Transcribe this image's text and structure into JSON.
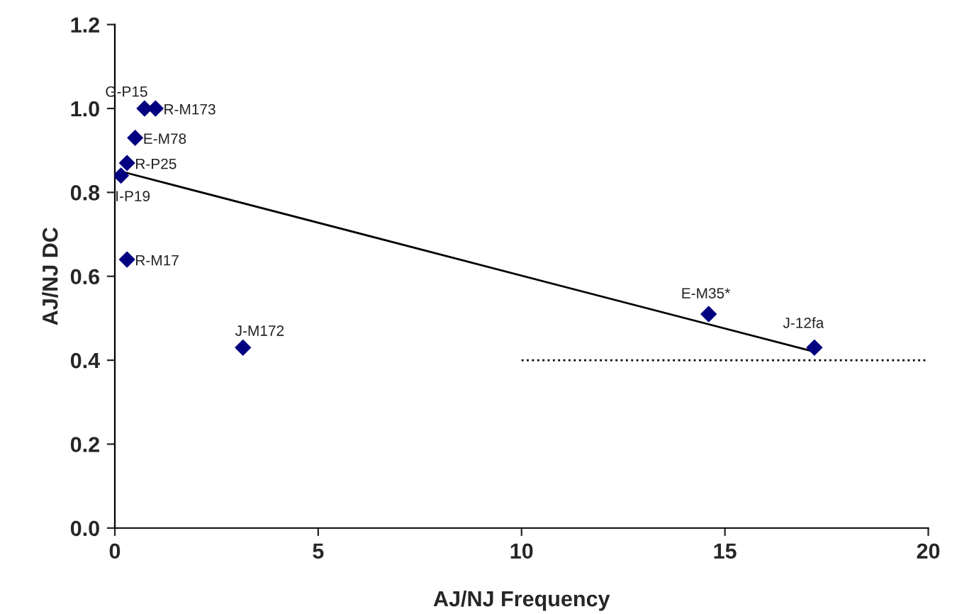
{
  "chart_data": {
    "type": "scatter",
    "xlabel": "AJ/NJ Frequency",
    "ylabel": "AJ/NJ DC",
    "xlim": [
      0,
      20
    ],
    "xticks": [
      0,
      5,
      10,
      15,
      20
    ],
    "ylim": [
      0,
      1.2
    ],
    "yticks": [
      {
        "value": 0,
        "label": "0.0"
      },
      {
        "value": 0.2,
        "label": "0.2"
      },
      {
        "value": 0.4,
        "label": "0.4"
      },
      {
        "value": 0.6,
        "label": "0.6"
      },
      {
        "value": 0.8,
        "label": "0.8"
      },
      {
        "value": 1.0,
        "label": "1.0"
      },
      {
        "value": 1.2,
        "label": "1.2"
      }
    ],
    "grid": false,
    "legend": false,
    "series": [
      {
        "color": "#000080",
        "marker": "diamond",
        "x": [
          0.73,
          1.0,
          0.5,
          0.3,
          0.15,
          0.3,
          3.15,
          14.6,
          17.2
        ],
        "values": [
          1.0,
          1.0,
          0.93,
          0.87,
          0.84,
          0.64,
          0.43,
          0.51,
          0.43
        ]
      },
      {
        "type": "line",
        "color": "#000000",
        "line_style": "solid",
        "x": [
          0.15,
          17.2
        ],
        "values": [
          0.85,
          0.42
        ]
      },
      {
        "type": "line",
        "color": "#000000",
        "line_style": "dotted",
        "x": [
          10,
          20
        ],
        "values": [
          0.4,
          0.4
        ]
      }
    ],
    "annotations": [
      {
        "text": "G-P15",
        "x": 0.73,
        "y": 1.0
      },
      {
        "text": "R-M173",
        "x": 1.0,
        "y": 1.0
      },
      {
        "text": "E-M78",
        "x": 0.5,
        "y": 0.93
      },
      {
        "text": "R-P25",
        "x": 0.3,
        "y": 0.87
      },
      {
        "text": "I-P19",
        "x": 0.15,
        "y": 0.84
      },
      {
        "text": "R-M17",
        "x": 0.3,
        "y": 0.64
      },
      {
        "text": "J-M172",
        "x": 3.15,
        "y": 0.43
      },
      {
        "text": "E-M35*",
        "x": 14.6,
        "y": 0.51
      },
      {
        "text": "J-12fa",
        "x": 17.2,
        "y": 0.43
      }
    ]
  }
}
